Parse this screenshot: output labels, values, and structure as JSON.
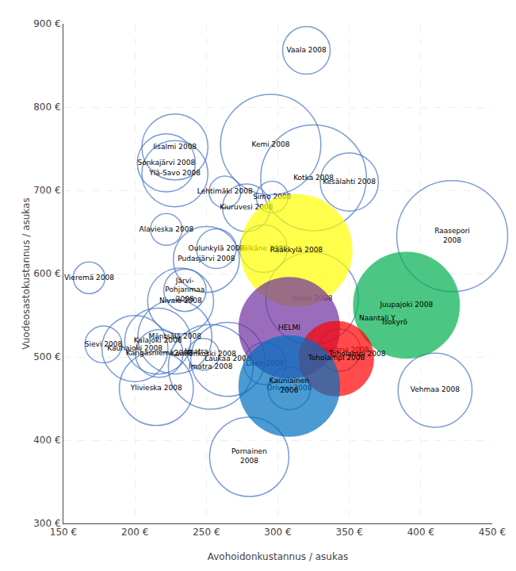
{
  "chart_data": {
    "type": "bubble",
    "xlabel": "Avohoidonkustannus / asukas",
    "ylabel": "Vuodeosastokustannus / asukas",
    "xlim": [
      150,
      450
    ],
    "ylim": [
      300,
      900
    ],
    "xticks": [
      {
        "value": 150,
        "label": "150 €"
      },
      {
        "value": 200,
        "label": "200 €"
      },
      {
        "value": 250,
        "label": "250 €"
      },
      {
        "value": 300,
        "label": "300 €"
      },
      {
        "value": 350,
        "label": "350 €"
      },
      {
        "value": 400,
        "label": "400 €"
      },
      {
        "value": 450,
        "label": "450 €"
      }
    ],
    "yticks": [
      {
        "value": 300,
        "label": "300 €"
      },
      {
        "value": 400,
        "label": "400 €"
      },
      {
        "value": 500,
        "label": "500 €"
      },
      {
        "value": 600,
        "label": "600 €"
      },
      {
        "value": 700,
        "label": "700 €"
      },
      {
        "value": 800,
        "label": "800 €"
      },
      {
        "value": 900,
        "label": "900 €"
      }
    ],
    "grid": true,
    "series": [
      {
        "marker": "circle-open",
        "color": "#4472c4",
        "points": [
          {
            "x": 320,
            "y": 868,
            "size": 18,
            "label": "Vaala 2008"
          },
          {
            "x": 228,
            "y": 752,
            "size": 25,
            "label": "Iisalmi 2008"
          },
          {
            "x": 295,
            "y": 755,
            "size": 38,
            "label": "Kemi 2008"
          },
          {
            "x": 325,
            "y": 715,
            "size": 40,
            "label": "Kotka 2008"
          },
          {
            "x": 350,
            "y": 710,
            "size": 22,
            "label": "Kesälahti 2008"
          },
          {
            "x": 222,
            "y": 733,
            "size": 22,
            "label": "Sonkajärvi 2008"
          },
          {
            "x": 228,
            "y": 720,
            "size": 25,
            "label": "Ylä-Savo 2008"
          },
          {
            "x": 263,
            "y": 698,
            "size": 12,
            "label": "Lehtimäki 2008"
          },
          {
            "x": 296,
            "y": 692,
            "size": 12,
            "label": "Simo 2008"
          },
          {
            "x": 278,
            "y": 679,
            "size": 18,
            "label": "Kiuruvesi 2008"
          },
          {
            "x": 222,
            "y": 653,
            "size": 12,
            "label": "Alavieska 2008"
          },
          {
            "x": 290,
            "y": 630,
            "size": 18,
            "label": "Pälkäne 2008"
          },
          {
            "x": 257,
            "y": 630,
            "size": 15,
            "label": "Oulunkylä 2008"
          },
          {
            "x": 250,
            "y": 617,
            "size": 25,
            "label": "Pudasjärvi 2008"
          },
          {
            "x": 235,
            "y": 580,
            "size": 16,
            "label": "Järvi-\nPohjanmaa\n2008"
          },
          {
            "x": 324,
            "y": 570,
            "size": 35,
            "label": "Nokia 2008"
          },
          {
            "x": 232,
            "y": 567,
            "size": 25,
            "label": "Nivala 2008"
          },
          {
            "x": 168,
            "y": 595,
            "size": 12,
            "label": "Vieremä 2008"
          },
          {
            "x": 178,
            "y": 515,
            "size": 14,
            "label": "Sievi 2008"
          },
          {
            "x": 228,
            "y": 524,
            "size": 28,
            "label": "Mäntsälä 2008"
          },
          {
            "x": 200,
            "y": 510,
            "size": 25,
            "label": "Kauhajoki 2008"
          },
          {
            "x": 217,
            "y": 504,
            "size": 18,
            "label": "Kangasniemi 2008"
          },
          {
            "x": 265,
            "y": 497,
            "size": 28,
            "label": "Laukaa 2008"
          },
          {
            "x": 248,
            "y": 503,
            "size": 12,
            "label": "Kannonkoski 2008"
          },
          {
            "x": 253,
            "y": 488,
            "size": 32,
            "label": "Imatra 2008"
          },
          {
            "x": 291,
            "y": 492,
            "size": 16,
            "label": "Litee 2008"
          },
          {
            "x": 216,
            "y": 519,
            "size": 25,
            "label": "Kalajoki 2008"
          },
          {
            "x": 215,
            "y": 462,
            "size": 28,
            "label": "Ylivieska 2008"
          },
          {
            "x": 308,
            "y": 462,
            "size": 16,
            "label": "Orivesi 2008"
          },
          {
            "x": 410,
            "y": 460,
            "size": 28,
            "label": "Vehmaa 2008"
          },
          {
            "x": 280,
            "y": 380,
            "size": 30,
            "label": "Pornainen\n2008"
          },
          {
            "x": 422,
            "y": 645,
            "size": 42,
            "label": "Raasepori\n2008"
          },
          {
            "x": 343,
            "y": 508,
            "size": 16,
            "label": "Tohmajärvi 2008"
          }
        ]
      },
      {
        "marker": "circle",
        "points": [
          {
            "x": 313,
            "y": 628,
            "size": 42,
            "color": "#ffff00",
            "label": "Rääkkylä 2008"
          },
          {
            "x": 390,
            "y": 562,
            "size": 40,
            "color": "#00b050",
            "label": "Juupajoki 2008"
          },
          {
            "x": 308,
            "y": 535,
            "size": 38,
            "color": "#7030a0",
            "label": "HELMI"
          },
          {
            "x": 341,
            "y": 498,
            "size": 28,
            "color": "#ff0000",
            "label": "Toholampi 2008"
          },
          {
            "x": 308,
            "y": 465,
            "size": 38,
            "color": "#0070c0",
            "label": "Kauniainen\n2008"
          }
        ]
      }
    ],
    "annotations": [
      {
        "text": "Naantali Y",
        "x": 356,
        "y": 540
      },
      {
        "text": "Isokyrö",
        "x": 372,
        "y": 535
      },
      {
        "text": "Imatra",
        "x": 234,
        "y": 500
      },
      {
        "text": "Toholampi 2008",
        "x": 334,
        "y": 497
      }
    ]
  }
}
